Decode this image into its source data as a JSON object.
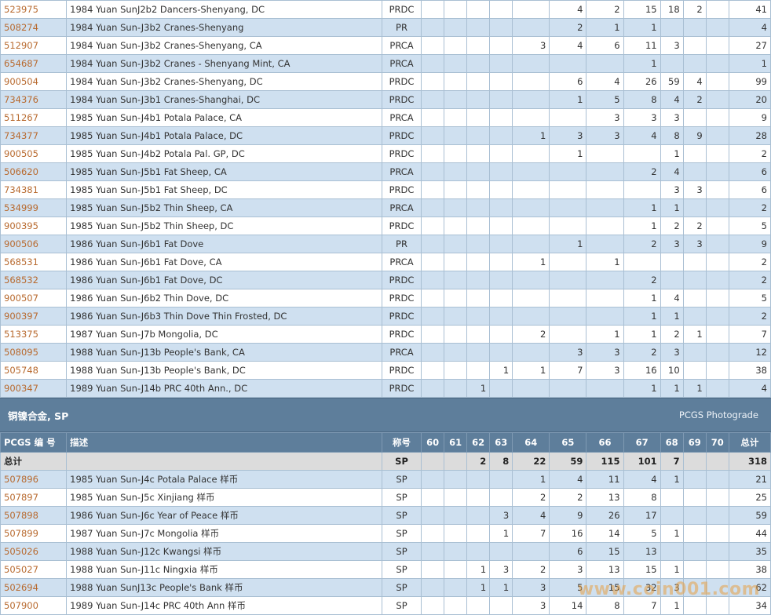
{
  "top_rows": [
    {
      "code": "523975",
      "desc": "1984 Yuan SunJ2b2 Dancers-Shenyang, DC",
      "den": "PRDC",
      "g": [
        "",
        "",
        "",
        "",
        "",
        "4",
        "2",
        "15",
        "18",
        "2",
        ""
      ],
      "total": "41"
    },
    {
      "code": "508274",
      "desc": "1984 Yuan Sun-J3b2 Cranes-Shenyang",
      "den": "PR",
      "g": [
        "",
        "",
        "",
        "",
        "",
        "2",
        "1",
        "1",
        "",
        "",
        ""
      ],
      "total": "4"
    },
    {
      "code": "512907",
      "desc": "1984 Yuan Sun-J3b2 Cranes-Shenyang, CA",
      "den": "PRCA",
      "g": [
        "",
        "",
        "",
        "",
        "3",
        "4",
        "6",
        "11",
        "3",
        "",
        ""
      ],
      "total": "27"
    },
    {
      "code": "654687",
      "desc": "1984 Yuan Sun-J3b2 Cranes - Shenyang Mint, CA",
      "den": "PRCA",
      "g": [
        "",
        "",
        "",
        "",
        "",
        "",
        "",
        "1",
        "",
        "",
        ""
      ],
      "total": "1"
    },
    {
      "code": "900504",
      "desc": "1984 Yuan Sun-J3b2 Cranes-Shenyang, DC",
      "den": "PRDC",
      "g": [
        "",
        "",
        "",
        "",
        "",
        "6",
        "4",
        "26",
        "59",
        "4",
        ""
      ],
      "total": "99"
    },
    {
      "code": "734376",
      "desc": "1984 Yuan Sun-J3b1 Cranes-Shanghai, DC",
      "den": "PRDC",
      "g": [
        "",
        "",
        "",
        "",
        "",
        "1",
        "5",
        "8",
        "4",
        "2",
        ""
      ],
      "total": "20"
    },
    {
      "code": "511267",
      "desc": "1985 Yuan Sun-J4b1 Potala Palace, CA",
      "den": "PRCA",
      "g": [
        "",
        "",
        "",
        "",
        "",
        "",
        "3",
        "3",
        "3",
        "",
        ""
      ],
      "total": "9"
    },
    {
      "code": "734377",
      "desc": "1985 Yuan Sun-J4b1 Potala Palace, DC",
      "den": "PRDC",
      "g": [
        "",
        "",
        "",
        "",
        "1",
        "3",
        "3",
        "4",
        "8",
        "9",
        ""
      ],
      "total": "28"
    },
    {
      "code": "900505",
      "desc": "1985 Yuan Sun-J4b2 Potala Pal. GP, DC",
      "den": "PRDC",
      "g": [
        "",
        "",
        "",
        "",
        "",
        "1",
        "",
        "",
        "1",
        "",
        ""
      ],
      "total": "2"
    },
    {
      "code": "506620",
      "desc": "1985 Yuan Sun-J5b1 Fat Sheep, CA",
      "den": "PRCA",
      "g": [
        "",
        "",
        "",
        "",
        "",
        "",
        "",
        "2",
        "4",
        "",
        ""
      ],
      "total": "6"
    },
    {
      "code": "734381",
      "desc": "1985 Yuan Sun-J5b1 Fat Sheep, DC",
      "den": "PRDC",
      "g": [
        "",
        "",
        "",
        "",
        "",
        "",
        "",
        "",
        "3",
        "3",
        ""
      ],
      "total": "6"
    },
    {
      "code": "534999",
      "desc": "1985 Yuan Sun-J5b2 Thin Sheep, CA",
      "den": "PRCA",
      "g": [
        "",
        "",
        "",
        "",
        "",
        "",
        "",
        "1",
        "1",
        "",
        ""
      ],
      "total": "2"
    },
    {
      "code": "900395",
      "desc": "1985 Yuan Sun-J5b2 Thin Sheep, DC",
      "den": "PRDC",
      "g": [
        "",
        "",
        "",
        "",
        "",
        "",
        "",
        "1",
        "2",
        "2",
        ""
      ],
      "total": "5"
    },
    {
      "code": "900506",
      "desc": "1986 Yuan Sun-J6b1 Fat Dove",
      "den": "PR",
      "g": [
        "",
        "",
        "",
        "",
        "",
        "1",
        "",
        "2",
        "3",
        "3",
        ""
      ],
      "total": "9"
    },
    {
      "code": "568531",
      "desc": "1986 Yuan Sun-J6b1 Fat Dove, CA",
      "den": "PRCA",
      "g": [
        "",
        "",
        "",
        "",
        "1",
        "",
        "1",
        "",
        "",
        "",
        ""
      ],
      "total": "2"
    },
    {
      "code": "568532",
      "desc": "1986 Yuan Sun-J6b1 Fat Dove, DC",
      "den": "PRDC",
      "g": [
        "",
        "",
        "",
        "",
        "",
        "",
        "",
        "2",
        "",
        "",
        ""
      ],
      "total": "2"
    },
    {
      "code": "900507",
      "desc": "1986 Yuan Sun-J6b2 Thin Dove, DC",
      "den": "PRDC",
      "g": [
        "",
        "",
        "",
        "",
        "",
        "",
        "",
        "1",
        "4",
        "",
        ""
      ],
      "total": "5"
    },
    {
      "code": "900397",
      "desc": "1986 Yuan Sun-J6b3 Thin Dove Thin Frosted, DC",
      "den": "PRDC",
      "g": [
        "",
        "",
        "",
        "",
        "",
        "",
        "",
        "1",
        "1",
        "",
        ""
      ],
      "total": "2"
    },
    {
      "code": "513375",
      "desc": "1987 Yuan Sun-J7b Mongolia, DC",
      "den": "PRDC",
      "g": [
        "",
        "",
        "",
        "",
        "2",
        "",
        "1",
        "1",
        "2",
        "1",
        ""
      ],
      "total": "7"
    },
    {
      "code": "508095",
      "desc": "1988 Yuan Sun-J13b People's Bank, CA",
      "den": "PRCA",
      "g": [
        "",
        "",
        "",
        "",
        "",
        "3",
        "3",
        "2",
        "3",
        "",
        ""
      ],
      "total": "12"
    },
    {
      "code": "505748",
      "desc": "1988 Yuan Sun-J13b People's Bank, DC",
      "den": "PRDC",
      "g": [
        "",
        "",
        "",
        "1",
        "1",
        "7",
        "3",
        "16",
        "10",
        "",
        ""
      ],
      "total": "38"
    },
    {
      "code": "900347",
      "desc": "1989 Yuan Sun-J14b PRC 40th Ann., DC",
      "den": "PRDC",
      "g": [
        "",
        "",
        "1",
        "",
        "",
        "",
        "",
        "1",
        "1",
        "1",
        ""
      ],
      "total": "4"
    }
  ],
  "section": {
    "title": "铜镍合金, SP",
    "link": "PCGS Photograde"
  },
  "header": {
    "code": "PCGS 编 号",
    "desc": "描述",
    "den": "称号",
    "grades": [
      "60",
      "61",
      "62",
      "63",
      "64",
      "65",
      "66",
      "67",
      "68",
      "69",
      "70"
    ],
    "total": "总计"
  },
  "summary": {
    "label": "总计",
    "den": "SP",
    "g": [
      "",
      "",
      "2",
      "8",
      "22",
      "59",
      "115",
      "101",
      "7",
      "",
      ""
    ],
    "total": "318"
  },
  "bottom_rows": [
    {
      "code": "507896",
      "desc": "1985 Yuan Sun-J4c Potala Palace 样币",
      "den": "SP",
      "g": [
        "",
        "",
        "",
        "",
        "1",
        "4",
        "11",
        "4",
        "1",
        "",
        ""
      ],
      "total": "21"
    },
    {
      "code": "507897",
      "desc": "1985 Yuan Sun-J5c Xinjiang 样币",
      "den": "SP",
      "g": [
        "",
        "",
        "",
        "",
        "2",
        "2",
        "13",
        "8",
        "",
        "",
        ""
      ],
      "total": "25"
    },
    {
      "code": "507898",
      "desc": "1986 Yuan Sun-J6c Year of Peace 样币",
      "den": "SP",
      "g": [
        "",
        "",
        "",
        "3",
        "4",
        "9",
        "26",
        "17",
        "",
        "",
        ""
      ],
      "total": "59"
    },
    {
      "code": "507899",
      "desc": "1987 Yuan Sun-J7c Mongolia 样币",
      "den": "SP",
      "g": [
        "",
        "",
        "",
        "1",
        "7",
        "16",
        "14",
        "5",
        "1",
        "",
        ""
      ],
      "total": "44"
    },
    {
      "code": "505026",
      "desc": "1988 Yuan Sun-J12c Kwangsi 样币",
      "den": "SP",
      "g": [
        "",
        "",
        "",
        "",
        "",
        "6",
        "15",
        "13",
        "",
        "",
        ""
      ],
      "total": "35"
    },
    {
      "code": "505027",
      "desc": "1988 Yuan Sun-J11c Ningxia 样币",
      "den": "SP",
      "g": [
        "",
        "",
        "1",
        "3",
        "2",
        "3",
        "13",
        "15",
        "1",
        "",
        ""
      ],
      "total": "38"
    },
    {
      "code": "502694",
      "desc": "1988 Yuan SunJ13c People's Bank 样币",
      "den": "SP",
      "g": [
        "",
        "",
        "1",
        "1",
        "3",
        "5",
        "15",
        "32",
        "3",
        "",
        ""
      ],
      "total": "62"
    },
    {
      "code": "507900",
      "desc": "1989 Yuan Sun-J14c PRC 40th Ann 样币",
      "den": "SP",
      "g": [
        "",
        "",
        "",
        "",
        "3",
        "14",
        "8",
        "7",
        "1",
        "",
        ""
      ],
      "total": "34"
    }
  ],
  "watermark": "www.coin001.com"
}
